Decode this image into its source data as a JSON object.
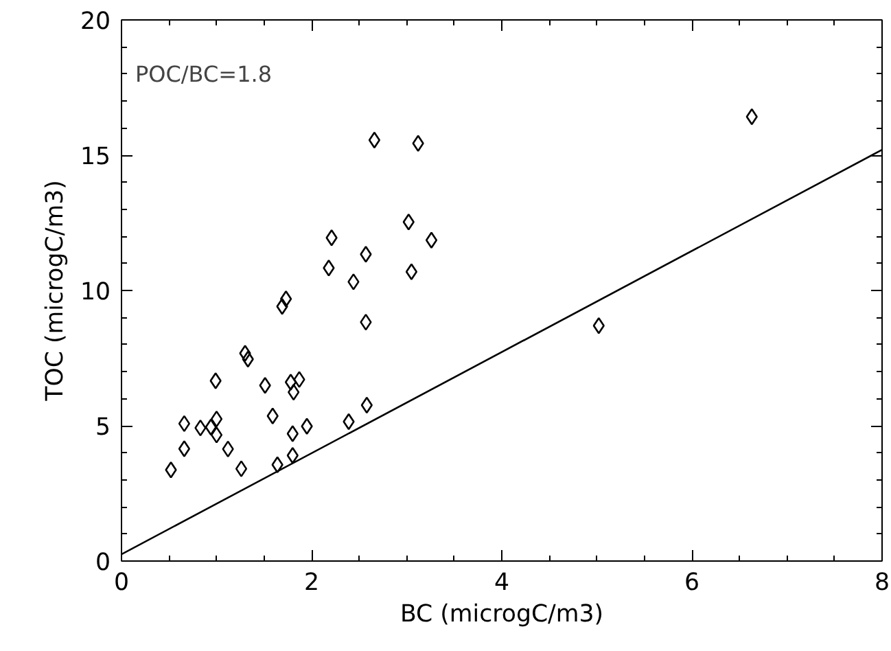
{
  "chart_data": {
    "type": "scatter",
    "xlabel": "BC (microgC/m3)",
    "ylabel": "TOC (microgC/m3)",
    "annotations": [
      "POC/BC=1.8"
    ],
    "xlim": [
      0,
      8
    ],
    "ylim": [
      0,
      20
    ],
    "xticks": [
      0,
      2,
      4,
      6,
      8
    ],
    "yticks": [
      0,
      5,
      10,
      15,
      20
    ],
    "grid": false,
    "series": [
      {
        "color": "#000000",
        "marker": "diamond",
        "x": [
          0.52,
          0.66,
          0.66,
          0.83,
          0.94,
          0.99,
          1.0,
          1.0,
          1.12,
          1.26,
          1.33,
          1.3,
          1.51,
          1.59,
          1.64,
          1.8,
          1.8,
          1.81,
          1.78,
          1.87,
          1.95,
          2.39,
          2.58,
          2.66,
          3.12,
          3.02,
          3.26,
          2.21,
          2.57,
          2.18,
          2.44,
          3.05,
          1.73,
          1.69,
          2.57,
          5.02,
          6.63
        ],
        "values": [
          3.37,
          4.15,
          5.08,
          4.92,
          4.95,
          6.66,
          5.25,
          4.66,
          4.14,
          3.41,
          7.46,
          7.68,
          6.49,
          5.36,
          3.56,
          3.9,
          4.71,
          6.24,
          6.61,
          6.71,
          4.98,
          5.15,
          5.76,
          15.56,
          15.44,
          12.53,
          11.86,
          11.95,
          11.34,
          10.83,
          10.32,
          10.69,
          9.69,
          9.41,
          8.83,
          8.7,
          16.42
        ]
      },
      {
        "type": "line",
        "color": "#000000",
        "line_style": "solid",
        "marker": "none",
        "x": [
          0,
          8
        ],
        "values": [
          0.25,
          15.2
        ]
      }
    ]
  }
}
